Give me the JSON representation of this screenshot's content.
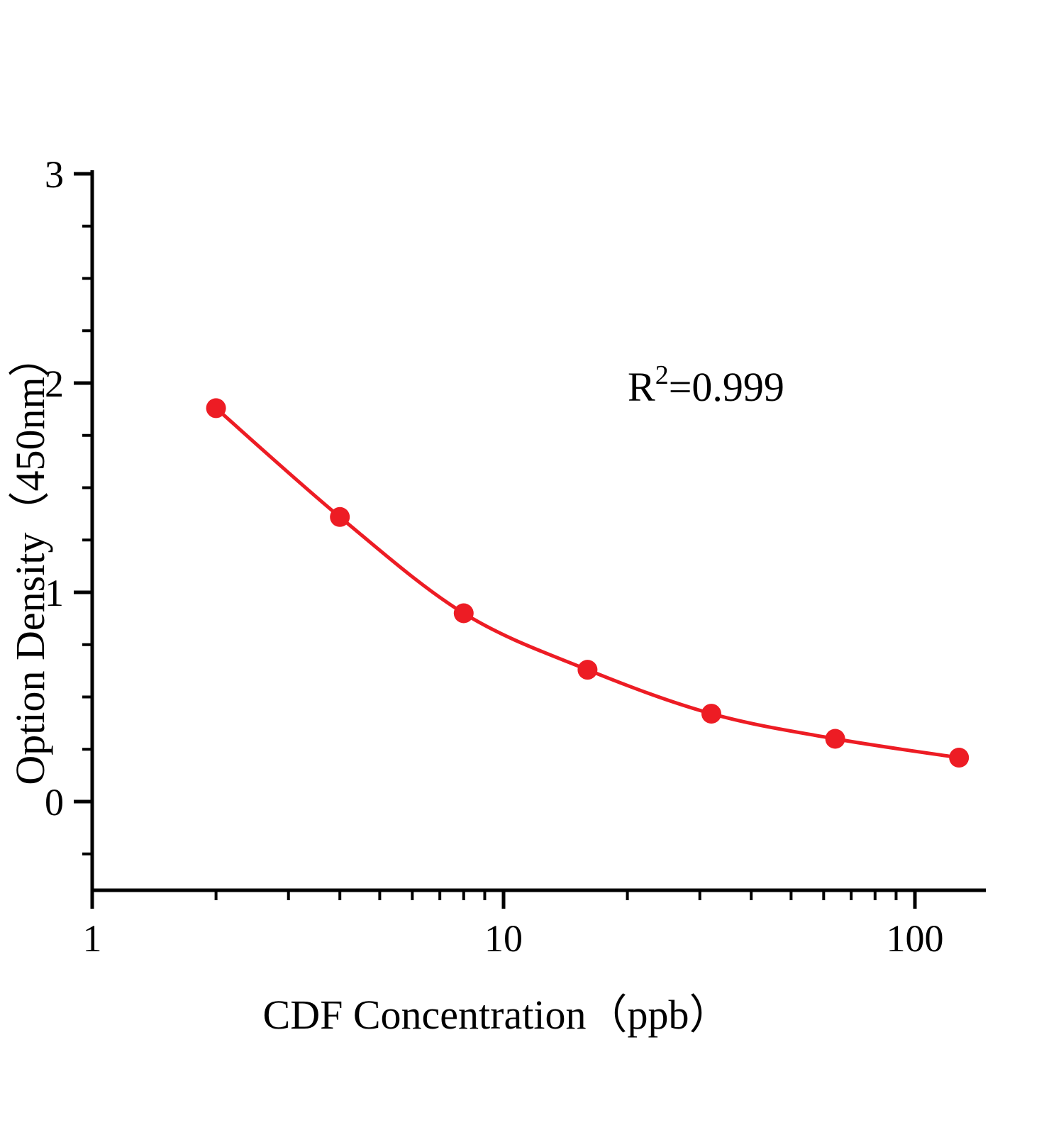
{
  "chart_data": {
    "type": "scatter",
    "title": "",
    "xlabel": "CDF Concentration（ppb）",
    "ylabel": "Option Density（450nm）",
    "x_scale": "log",
    "x": [
      2,
      4,
      8,
      16,
      32,
      64,
      128
    ],
    "y": [
      1.88,
      1.36,
      0.9,
      0.63,
      0.42,
      0.3,
      0.21
    ],
    "x_tick_labels": [
      "1",
      "10",
      "100"
    ],
    "x_tick_values": [
      1,
      10,
      100
    ],
    "x_minor_tick_values": [
      2,
      3,
      4,
      5,
      6,
      7,
      8,
      9,
      20,
      30,
      40,
      50,
      60,
      70,
      80,
      90
    ],
    "y_tick_labels": [
      "0",
      "1",
      "2",
      "3"
    ],
    "y_tick_values": [
      0,
      1,
      2,
      3
    ],
    "y_minor_step": 0.25,
    "xlim": [
      1,
      148
    ],
    "ylim": [
      -0.42,
      3.05
    ],
    "grid": false,
    "legend_position": "none",
    "annotation": {
      "base": "R",
      "superscript": "2",
      "rest": "=0.999"
    },
    "colors": {
      "series": "#ed1c24",
      "axis": "#000000",
      "text": "#000000",
      "background": "#ffffff"
    }
  }
}
